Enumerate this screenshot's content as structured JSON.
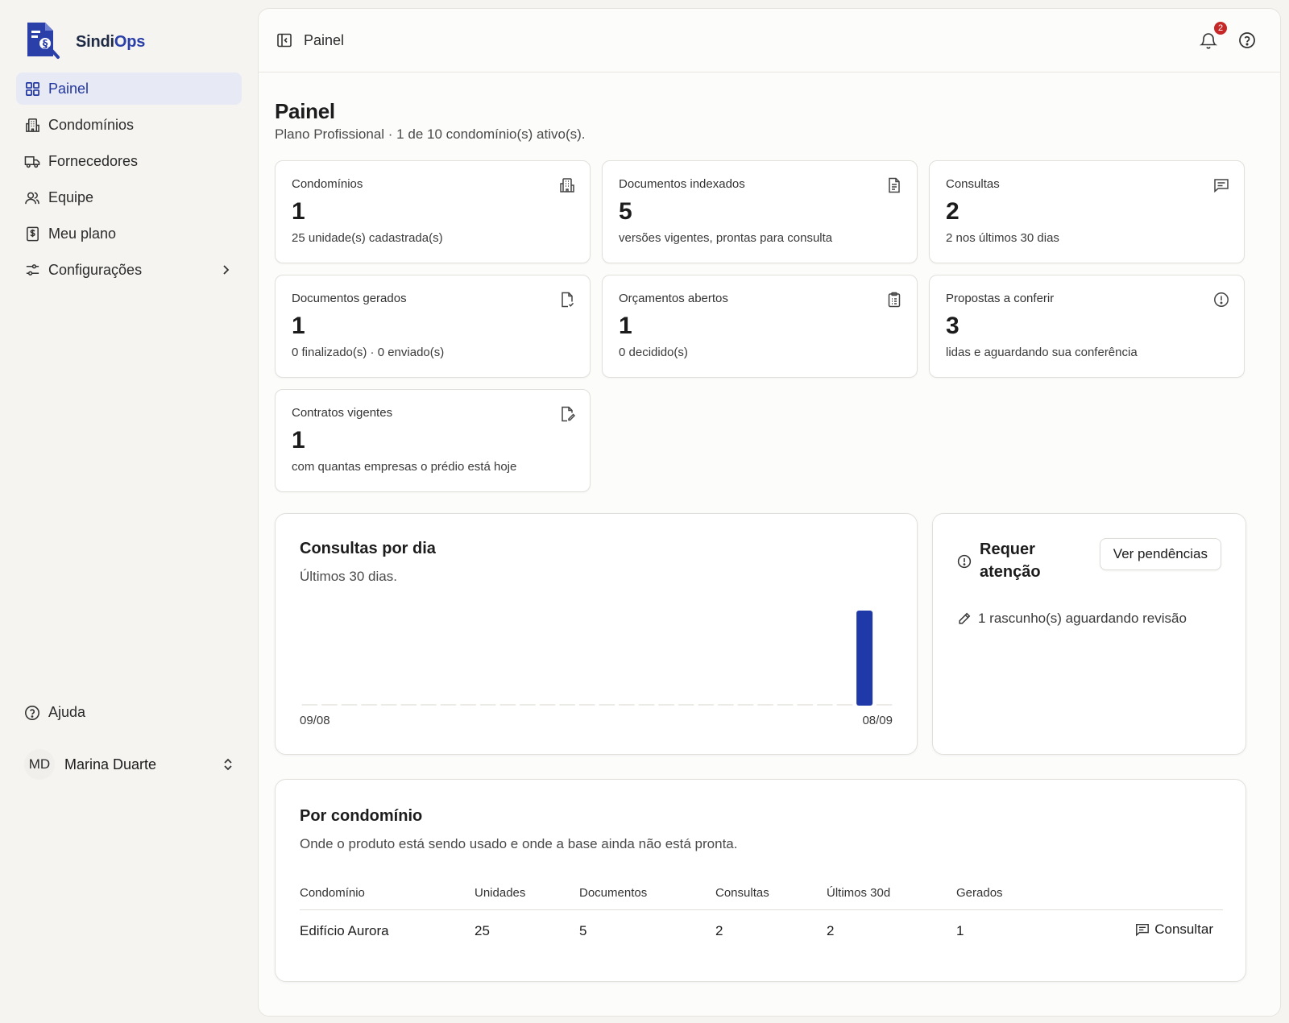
{
  "brand": {
    "name_part1": "Sindi",
    "name_part2": "Ops"
  },
  "sidebar": {
    "items": [
      {
        "label": "Painel",
        "icon": "grid-icon",
        "active": true
      },
      {
        "label": "Condomínios",
        "icon": "building-icon"
      },
      {
        "label": "Fornecedores",
        "icon": "truck-icon"
      },
      {
        "label": "Equipe",
        "icon": "users-icon"
      },
      {
        "label": "Meu plano",
        "icon": "receipt-icon"
      },
      {
        "label": "Configurações",
        "icon": "settings-sliders-icon"
      }
    ],
    "help_label": "Ajuda",
    "user": {
      "initials": "MD",
      "name": "Marina Duarte"
    }
  },
  "topbar": {
    "breadcrumb": "Painel",
    "notification_count": "2"
  },
  "page": {
    "title": "Painel",
    "subtitle": "Plano Profissional · 1 de 10 condomínio(s) ativo(s)."
  },
  "stats": [
    {
      "label": "Condomínios",
      "value": "1",
      "desc": "25 unidade(s) cadastrada(s)",
      "icon": "building-icon"
    },
    {
      "label": "Documentos indexados",
      "value": "5",
      "desc": "versões vigentes, prontas para consulta",
      "icon": "file-text-icon"
    },
    {
      "label": "Consultas",
      "value": "2",
      "desc": "2 nos últimos 30 dias",
      "icon": "message-square-icon"
    },
    {
      "label": "Documentos gerados",
      "value": "1",
      "desc": "0 finalizado(s) · 0 enviado(s)",
      "icon": "file-check-icon"
    },
    {
      "label": "Orçamentos abertos",
      "value": "1",
      "desc": "0 decidido(s)",
      "icon": "clipboard-icon"
    },
    {
      "label": "Propostas a conferir",
      "value": "3",
      "desc": "lidas e aguardando sua conferência",
      "icon": "alert-circle-icon"
    },
    {
      "label": "Contratos vigentes",
      "value": "1",
      "desc": "com quantas empresas o prédio está hoje",
      "icon": "file-edit-icon"
    }
  ],
  "chart_panel": {
    "title": "Consultas por dia",
    "subtitle": "Últimos 30 dias."
  },
  "chart_data": {
    "type": "bar",
    "title": "Consultas por dia",
    "subtitle": "Últimos 30 dias.",
    "x_start_label": "09/08",
    "x_end_label": "08/09",
    "values": [
      0,
      0,
      0,
      0,
      0,
      0,
      0,
      0,
      0,
      0,
      0,
      0,
      0,
      0,
      0,
      0,
      0,
      0,
      0,
      0,
      0,
      0,
      0,
      0,
      0,
      0,
      0,
      0,
      2,
      0
    ],
    "ylim": [
      0,
      2
    ],
    "grid": false,
    "color": "#1f3aa8"
  },
  "attention": {
    "title": "Requer atenção",
    "button_label": "Ver pendências",
    "items": [
      {
        "text": "1 rascunho(s) aguardando revisão",
        "icon": "pencil-icon"
      }
    ]
  },
  "by_condo": {
    "title": "Por condomínio",
    "subtitle": "Onde o produto está sendo usado e onde a base ainda não está pronta.",
    "columns": [
      "Condomínio",
      "Unidades",
      "Documentos",
      "Consultas",
      "Últimos 30d",
      "Gerados"
    ],
    "rows": [
      {
        "name": "Edifício Aurora",
        "unidades": "25",
        "documentos": "5",
        "consultas": "2",
        "ultimos30d": "2",
        "gerados": "1",
        "action": "Consultar"
      }
    ]
  },
  "colors": {
    "accent": "#2136a0",
    "active_bg": "#e7eaf4",
    "badge": "#c62828"
  }
}
